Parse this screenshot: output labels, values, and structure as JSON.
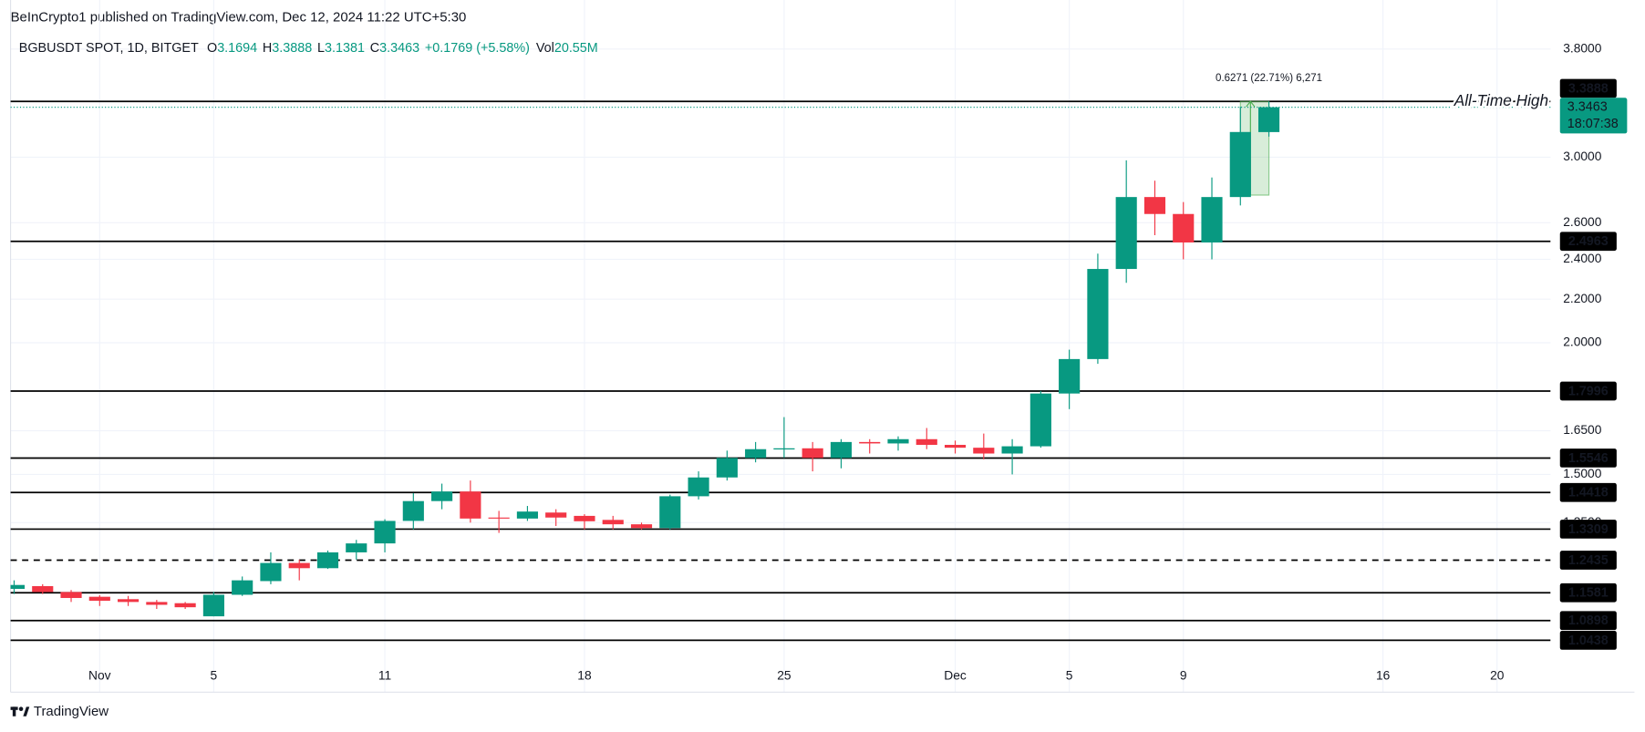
{
  "header": "BeInCrypto1 published on TradingView.com, Dec 12, 2024 11:22 UTC+5:30",
  "footer": "TradingView",
  "chart_data": {
    "type": "candlestick",
    "symbol": "BGBUSDT SPOT, 1D, BITGET",
    "ohlc": [
      {
        "key": "O",
        "text": "3.1694"
      },
      {
        "key": "H",
        "text": "3.3888"
      },
      {
        "key": "L",
        "text": "3.1381"
      },
      {
        "key": "C",
        "text": "3.3463"
      }
    ],
    "change": "+0.1769 (+5.58%)",
    "volume": {
      "key": "Vol",
      "text": "20.55M"
    },
    "x": [
      "2024-10-29",
      "2024-10-30",
      "2024-10-31",
      "2024-11-01",
      "2024-11-02",
      "2024-11-03",
      "2024-11-04",
      "2024-11-05",
      "2024-11-06",
      "2024-11-07",
      "2024-11-08",
      "2024-11-09",
      "2024-11-10",
      "2024-11-11",
      "2024-11-12",
      "2024-11-13",
      "2024-11-14",
      "2024-11-15",
      "2024-11-16",
      "2024-11-17",
      "2024-11-18",
      "2024-11-19",
      "2024-11-20",
      "2024-11-21",
      "2024-11-22",
      "2024-11-23",
      "2024-11-24",
      "2024-11-25",
      "2024-11-26",
      "2024-11-27",
      "2024-11-28",
      "2024-11-29",
      "2024-11-30",
      "2024-12-01",
      "2024-12-02",
      "2024-12-03",
      "2024-12-04",
      "2024-12-05",
      "2024-12-06",
      "2024-12-07",
      "2024-12-08",
      "2024-12-09",
      "2024-12-10",
      "2024-12-11",
      "2024-12-12"
    ],
    "open": [
      1.168,
      1.175,
      1.16,
      1.148,
      1.142,
      1.135,
      1.132,
      1.1,
      1.153,
      1.188,
      1.236,
      1.222,
      1.265,
      1.29,
      1.355,
      1.415,
      1.445,
      1.365,
      1.362,
      1.38,
      1.37,
      1.358,
      1.345,
      1.334,
      1.43,
      1.49,
      1.555,
      1.584,
      1.588,
      1.555,
      1.61,
      1.605,
      1.62,
      1.6,
      1.59,
      1.57,
      1.595,
      1.79,
      1.93,
      2.35,
      2.75,
      2.65,
      2.49,
      2.75,
      3.1694
    ],
    "high": [
      1.19,
      1.18,
      1.165,
      1.152,
      1.15,
      1.14,
      1.135,
      1.16,
      1.2,
      1.265,
      1.245,
      1.27,
      1.3,
      1.36,
      1.44,
      1.47,
      1.48,
      1.385,
      1.4,
      1.39,
      1.375,
      1.37,
      1.35,
      1.435,
      1.51,
      1.58,
      1.61,
      1.7,
      1.61,
      1.62,
      1.62,
      1.63,
      1.66,
      1.615,
      1.64,
      1.62,
      1.8,
      1.97,
      2.43,
      2.98,
      2.85,
      2.72,
      2.87,
      3.35,
      3.3888
    ],
    "low": [
      1.155,
      1.155,
      1.135,
      1.125,
      1.125,
      1.118,
      1.118,
      1.1,
      1.15,
      1.18,
      1.19,
      1.22,
      1.245,
      1.265,
      1.33,
      1.39,
      1.35,
      1.32,
      1.355,
      1.34,
      1.33,
      1.33,
      1.33,
      1.33,
      1.42,
      1.48,
      1.54,
      1.555,
      1.51,
      1.52,
      1.57,
      1.58,
      1.585,
      1.57,
      1.55,
      1.5,
      1.59,
      1.73,
      1.91,
      2.28,
      2.53,
      2.4,
      2.4,
      2.7,
      3.1381
    ],
    "close": [
      1.178,
      1.16,
      1.145,
      1.138,
      1.135,
      1.128,
      1.122,
      1.153,
      1.19,
      1.236,
      1.222,
      1.265,
      1.29,
      1.355,
      1.415,
      1.445,
      1.362,
      1.362,
      1.383,
      1.365,
      1.354,
      1.345,
      1.334,
      1.43,
      1.49,
      1.555,
      1.585,
      1.588,
      1.555,
      1.61,
      1.605,
      1.62,
      1.6,
      1.59,
      1.57,
      1.595,
      1.79,
      1.93,
      2.35,
      2.75,
      2.65,
      2.49,
      2.75,
      3.17,
      3.3463
    ],
    "up_color": "#089981",
    "down_color": "#f23645",
    "xlim": [
      "2024-10-28T21:00",
      "2024-12-21T21:00"
    ],
    "xticks": [
      {
        "value": "2024-11-01",
        "label": "Nov"
      },
      {
        "value": "2024-11-05",
        "label": "5"
      },
      {
        "value": "2024-11-11",
        "label": "11"
      },
      {
        "value": "2024-11-18",
        "label": "18"
      },
      {
        "value": "2024-11-25",
        "label": "25"
      },
      {
        "value": "2024-12-01",
        "label": "Dec"
      },
      {
        "value": "2024-12-05",
        "label": "5"
      },
      {
        "value": "2024-12-09",
        "label": "9"
      },
      {
        "value": "2024-12-16",
        "label": "16"
      },
      {
        "value": "2024-12-20",
        "label": "20"
      }
    ],
    "log_y": true,
    "ylim": [
      0.932,
      4.23
    ],
    "yticks": [
      {
        "value": 3.8,
        "label": "3.8000"
      },
      {
        "value": 3.0,
        "label": "3.0000"
      },
      {
        "value": 2.6,
        "label": "2.6000"
      },
      {
        "value": 2.4,
        "label": "2.4000"
      },
      {
        "value": 2.2,
        "label": "2.2000"
      },
      {
        "value": 2.0,
        "label": "2.0000"
      },
      {
        "value": 1.65,
        "label": "1.6500"
      },
      {
        "value": 1.5,
        "label": "1.5000"
      },
      {
        "value": 1.35,
        "label": "1.3500"
      }
    ],
    "grid": true,
    "levels": [
      {
        "value": 3.3888,
        "dashed": false
      },
      {
        "value": 2.4963,
        "dashed": false
      },
      {
        "value": 1.7996,
        "dashed": false
      },
      {
        "value": 1.5546,
        "dashed": false
      },
      {
        "value": 1.4418,
        "dashed": false
      },
      {
        "value": 1.3309,
        "dashed": false
      },
      {
        "value": 1.2435,
        "dashed": true
      },
      {
        "value": 1.1581,
        "dashed": false
      },
      {
        "value": 1.0898,
        "dashed": false
      },
      {
        "value": 1.0438,
        "dashed": false
      }
    ],
    "annotation": "All-Time High",
    "measure": {
      "x": [
        "2024-12-11",
        "2024-12-12"
      ],
      "y": [
        2.7617,
        3.3888
      ],
      "label": "0.6271 (22.71%) 6,271"
    },
    "last_price": 3.3463,
    "countdown": "18:07:38"
  }
}
